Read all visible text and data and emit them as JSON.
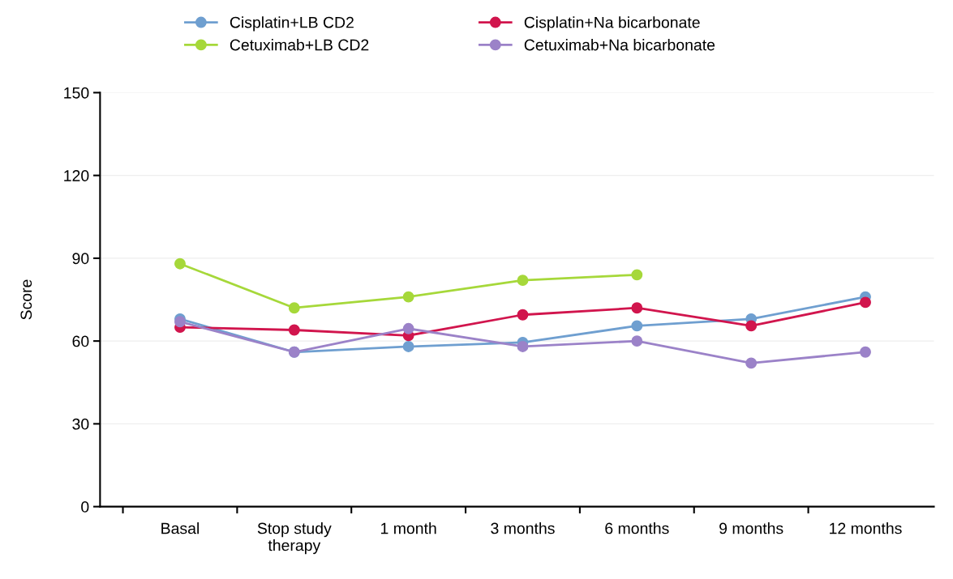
{
  "chart_data": {
    "type": "line",
    "ylabel": "Score",
    "categories": [
      "Basal",
      "Stop study\ntherapy",
      "1 month",
      "3 months",
      "6 months",
      "9 months",
      "12 months"
    ],
    "series": [
      {
        "name": "Cisplatin+LB CD2",
        "color": "#6f9fd0",
        "values": [
          68,
          56,
          58,
          59.5,
          65.5,
          68,
          76
        ]
      },
      {
        "name": "Cetuximab+LB CD2",
        "color": "#a6d83a",
        "values": [
          88,
          72,
          76,
          82,
          84,
          null,
          null
        ]
      },
      {
        "name": "Cisplatin+Na bicarbonate",
        "color": "#d1154d",
        "values": [
          65,
          64,
          62,
          69.5,
          72,
          65.5,
          74
        ]
      },
      {
        "name": "Cetuximab+Na bicarbonate",
        "color": "#9b82c8",
        "values": [
          67,
          56,
          64.5,
          58,
          60,
          52,
          56
        ]
      }
    ],
    "ylim": [
      0,
      150
    ],
    "yticks": [
      0,
      30,
      60,
      90,
      120,
      150
    ],
    "grid": "y",
    "legend": "top",
    "marker": "circle",
    "line_style": "solid"
  }
}
